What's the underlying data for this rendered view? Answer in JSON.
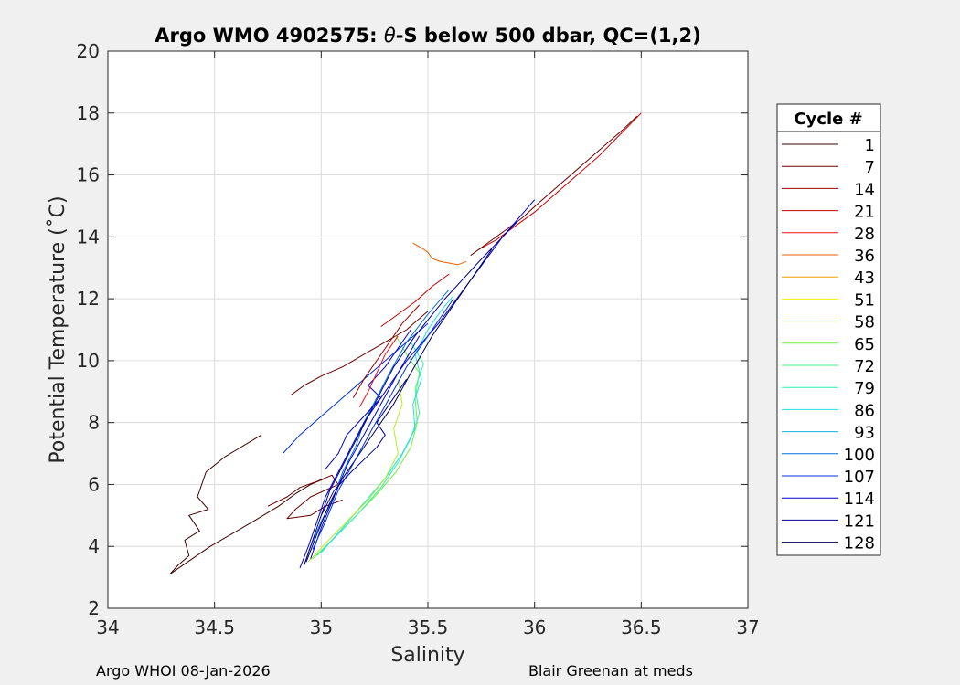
{
  "chart_data": {
    "type": "line",
    "title_prefix": "Argo WMO 4902575: ",
    "title_symbol": "θ",
    "title_suffix": "-S below 500 dbar,  QC=(1,2)",
    "xlabel": "Salinity",
    "ylabel": "Potential Temperature (˚C)",
    "xlim": [
      34,
      37
    ],
    "ylim": [
      2,
      20
    ],
    "xticks": [
      "34",
      "34.5",
      "35",
      "35.5",
      "36",
      "36.5",
      "37"
    ],
    "yticks": [
      "2",
      "4",
      "6",
      "8",
      "10",
      "12",
      "14",
      "16",
      "18",
      "20"
    ],
    "grid": true,
    "legend": {
      "title": "Cycle #",
      "placement": "right-outside",
      "entries": [
        "1",
        "7",
        "14",
        "21",
        "28",
        "36",
        "43",
        "51",
        "58",
        "65",
        "72",
        "79",
        "86",
        "93",
        "100",
        "107",
        "114",
        "121",
        "128"
      ],
      "colors": [
        "#3d0000",
        "#6a0000",
        "#9a0000",
        "#c80000",
        "#f01010",
        "#e86000",
        "#f0a000",
        "#f0f000",
        "#b0f020",
        "#70f040",
        "#40f080",
        "#30f0b0",
        "#20e0e0",
        "#10b0e0",
        "#0070e0",
        "#0030e0",
        "#0000d0",
        "#000090",
        "#000050"
      ]
    },
    "series": [
      {
        "color": "#3d0000",
        "x": [
          34.72,
          34.55,
          34.46,
          34.42,
          34.47,
          34.38,
          34.43,
          34.36,
          34.38,
          34.33,
          34.29
        ],
        "y": [
          7.6,
          6.9,
          6.4,
          5.6,
          5.2,
          5.0,
          4.5,
          4.2,
          3.7,
          3.4,
          3.1
        ]
      },
      {
        "color": "#3d0000",
        "x": [
          34.29,
          34.48,
          34.68,
          34.8,
          34.88,
          34.95,
          35.02
        ],
        "y": [
          3.1,
          4.0,
          4.8,
          5.3,
          5.7,
          6.0,
          6.2
        ]
      },
      {
        "color": "#6a0000",
        "x": [
          34.75,
          34.84,
          34.9,
          34.98,
          35.05,
          35.08,
          34.95,
          34.88,
          34.84,
          34.95,
          35.02,
          35.1
        ],
        "y": [
          5.3,
          5.6,
          5.9,
          6.1,
          6.3,
          6.0,
          5.6,
          5.2,
          4.9,
          5.0,
          5.3,
          5.5
        ]
      },
      {
        "color": "#6a0000",
        "x": [
          34.86,
          34.92,
          35.0,
          35.1,
          35.2,
          35.3,
          35.4,
          35.5
        ],
        "y": [
          8.9,
          9.2,
          9.5,
          9.8,
          10.2,
          10.6,
          11.0,
          11.6
        ]
      },
      {
        "color": "#c80000",
        "x": [
          35.28,
          35.36,
          35.44,
          35.52,
          35.6
        ],
        "y": [
          11.1,
          11.5,
          11.9,
          12.4,
          12.8
        ]
      },
      {
        "color": "#c80000",
        "x": [
          35.74,
          35.82,
          35.9,
          36.0,
          36.1,
          36.2,
          36.3,
          36.4,
          36.5
        ],
        "y": [
          13.6,
          13.9,
          14.3,
          14.8,
          15.4,
          16.0,
          16.6,
          17.3,
          18.0
        ]
      },
      {
        "color": "#6a0000",
        "x": [
          35.7,
          35.78,
          35.86,
          35.94,
          36.02,
          36.12,
          36.22,
          36.32,
          36.42,
          36.48
        ],
        "y": [
          13.4,
          13.8,
          14.2,
          14.6,
          15.1,
          15.7,
          16.3,
          16.9,
          17.5,
          17.9
        ]
      },
      {
        "color": "#e86000",
        "x": [
          35.43,
          35.48,
          35.5,
          35.52,
          35.56,
          35.64,
          35.68
        ],
        "y": [
          13.8,
          13.6,
          13.5,
          13.3,
          13.2,
          13.1,
          13.2
        ]
      },
      {
        "color": "#70f040",
        "x": [
          34.96,
          35.05,
          35.15,
          35.25,
          35.35,
          35.42,
          35.45,
          35.44,
          35.46,
          35.4,
          35.35
        ],
        "y": [
          3.6,
          4.2,
          4.9,
          5.6,
          6.4,
          7.2,
          8.0,
          8.8,
          9.6,
          10.2,
          10.8
        ]
      },
      {
        "color": "#30f0b0",
        "x": [
          34.98,
          35.08,
          35.18,
          35.28,
          35.36,
          35.42,
          35.46,
          35.44,
          35.48,
          35.42
        ],
        "y": [
          3.7,
          4.4,
          5.1,
          5.9,
          6.7,
          7.5,
          8.3,
          9.1,
          9.9,
          10.6
        ]
      },
      {
        "color": "#20e0e0",
        "x": [
          35.0,
          35.1,
          35.2,
          35.3,
          35.38,
          35.44,
          35.43,
          35.47,
          35.44,
          35.5,
          35.56,
          35.62
        ],
        "y": [
          3.8,
          4.6,
          5.4,
          6.2,
          7.0,
          7.8,
          8.6,
          9.4,
          10.2,
          11.0,
          11.6,
          12.1
        ]
      },
      {
        "color": "#b0f020",
        "x": [
          34.94,
          35.02,
          35.12,
          35.22,
          35.3,
          35.36,
          35.34,
          35.38,
          35.36
        ],
        "y": [
          3.5,
          4.1,
          4.8,
          5.5,
          6.2,
          7.0,
          7.8,
          8.6,
          9.4
        ]
      },
      {
        "color": "#0070e0",
        "x": [
          34.92,
          34.95,
          35.0,
          35.06,
          35.1,
          35.16,
          35.2,
          35.26,
          35.32,
          35.4,
          35.5,
          35.6
        ],
        "y": [
          3.4,
          4.0,
          4.8,
          5.6,
          6.4,
          7.2,
          8.0,
          8.8,
          9.6,
          10.6,
          11.5,
          12.3
        ]
      },
      {
        "color": "#0030e0",
        "x": [
          34.82,
          34.9,
          35.0,
          35.1,
          35.2,
          35.3,
          35.4,
          35.5
        ],
        "y": [
          7.0,
          7.6,
          8.2,
          8.8,
          9.4,
          10.0,
          10.6,
          11.2
        ]
      },
      {
        "color": "#0000d0",
        "x": [
          34.9,
          34.94,
          34.98,
          35.02,
          35.08,
          35.14,
          35.2,
          35.3,
          35.4,
          35.55,
          35.7,
          35.85,
          36.0
        ],
        "y": [
          3.3,
          4.0,
          4.8,
          5.6,
          6.4,
          7.2,
          8.0,
          9.0,
          10.0,
          11.2,
          12.6,
          14.0,
          15.2
        ]
      },
      {
        "color": "#000090",
        "x": [
          34.92,
          34.96,
          35.0,
          35.04,
          35.1,
          35.16,
          35.22,
          35.28,
          35.34,
          35.44,
          35.58,
          35.74,
          35.92
        ],
        "y": [
          3.4,
          4.2,
          5.0,
          5.8,
          6.6,
          7.4,
          8.2,
          9.0,
          9.8,
          10.8,
          12.0,
          13.2,
          14.5
        ]
      },
      {
        "color": "#000050",
        "x": [
          34.93,
          34.98,
          35.04,
          35.1,
          35.18,
          35.26,
          35.34,
          35.42,
          35.52,
          35.66,
          35.8
        ],
        "y": [
          3.5,
          4.4,
          5.4,
          6.2,
          7.0,
          7.8,
          8.6,
          9.6,
          10.8,
          12.2,
          13.6
        ]
      },
      {
        "color": "#0000d0",
        "x": [
          34.95,
          35.0,
          35.06,
          35.12,
          35.2,
          35.28,
          35.36,
          35.46
        ],
        "y": [
          3.6,
          4.6,
          5.6,
          6.6,
          7.6,
          8.6,
          9.6,
          10.8
        ]
      },
      {
        "color": "#0030e0",
        "x": [
          34.96,
          35.02,
          35.08,
          35.16,
          35.24,
          35.32,
          35.4,
          35.5,
          35.62
        ],
        "y": [
          3.9,
          4.8,
          5.8,
          6.8,
          7.8,
          8.8,
          9.8,
          10.8,
          12.0
        ]
      },
      {
        "color": "#000090",
        "x": [
          35.0,
          35.06,
          35.14,
          35.2,
          35.26,
          35.3,
          35.26,
          35.32,
          35.4
        ],
        "y": [
          5.0,
          5.8,
          6.4,
          6.8,
          7.2,
          7.6,
          8.0,
          8.6,
          9.4
        ]
      },
      {
        "color": "#0000d0",
        "x": [
          35.02,
          35.08,
          35.12,
          35.2,
          35.28,
          35.22,
          35.3,
          35.36,
          35.42
        ],
        "y": [
          6.5,
          7.0,
          7.6,
          8.2,
          8.8,
          9.2,
          9.8,
          10.4,
          11.0
        ]
      },
      {
        "color": "#f01010",
        "x": [
          35.18,
          35.22,
          35.26,
          35.3,
          35.36
        ],
        "y": [
          8.5,
          9.0,
          9.6,
          10.2,
          10.8
        ]
      },
      {
        "color": "#9a0000",
        "x": [
          35.15,
          35.2,
          35.26,
          35.32,
          35.38,
          35.46
        ],
        "y": [
          8.8,
          9.4,
          10.0,
          10.6,
          11.2,
          11.8
        ]
      }
    ]
  },
  "footer": {
    "left": "Argo WHOI 08-Jan-2026",
    "right": "Blair Greenan at meds"
  }
}
